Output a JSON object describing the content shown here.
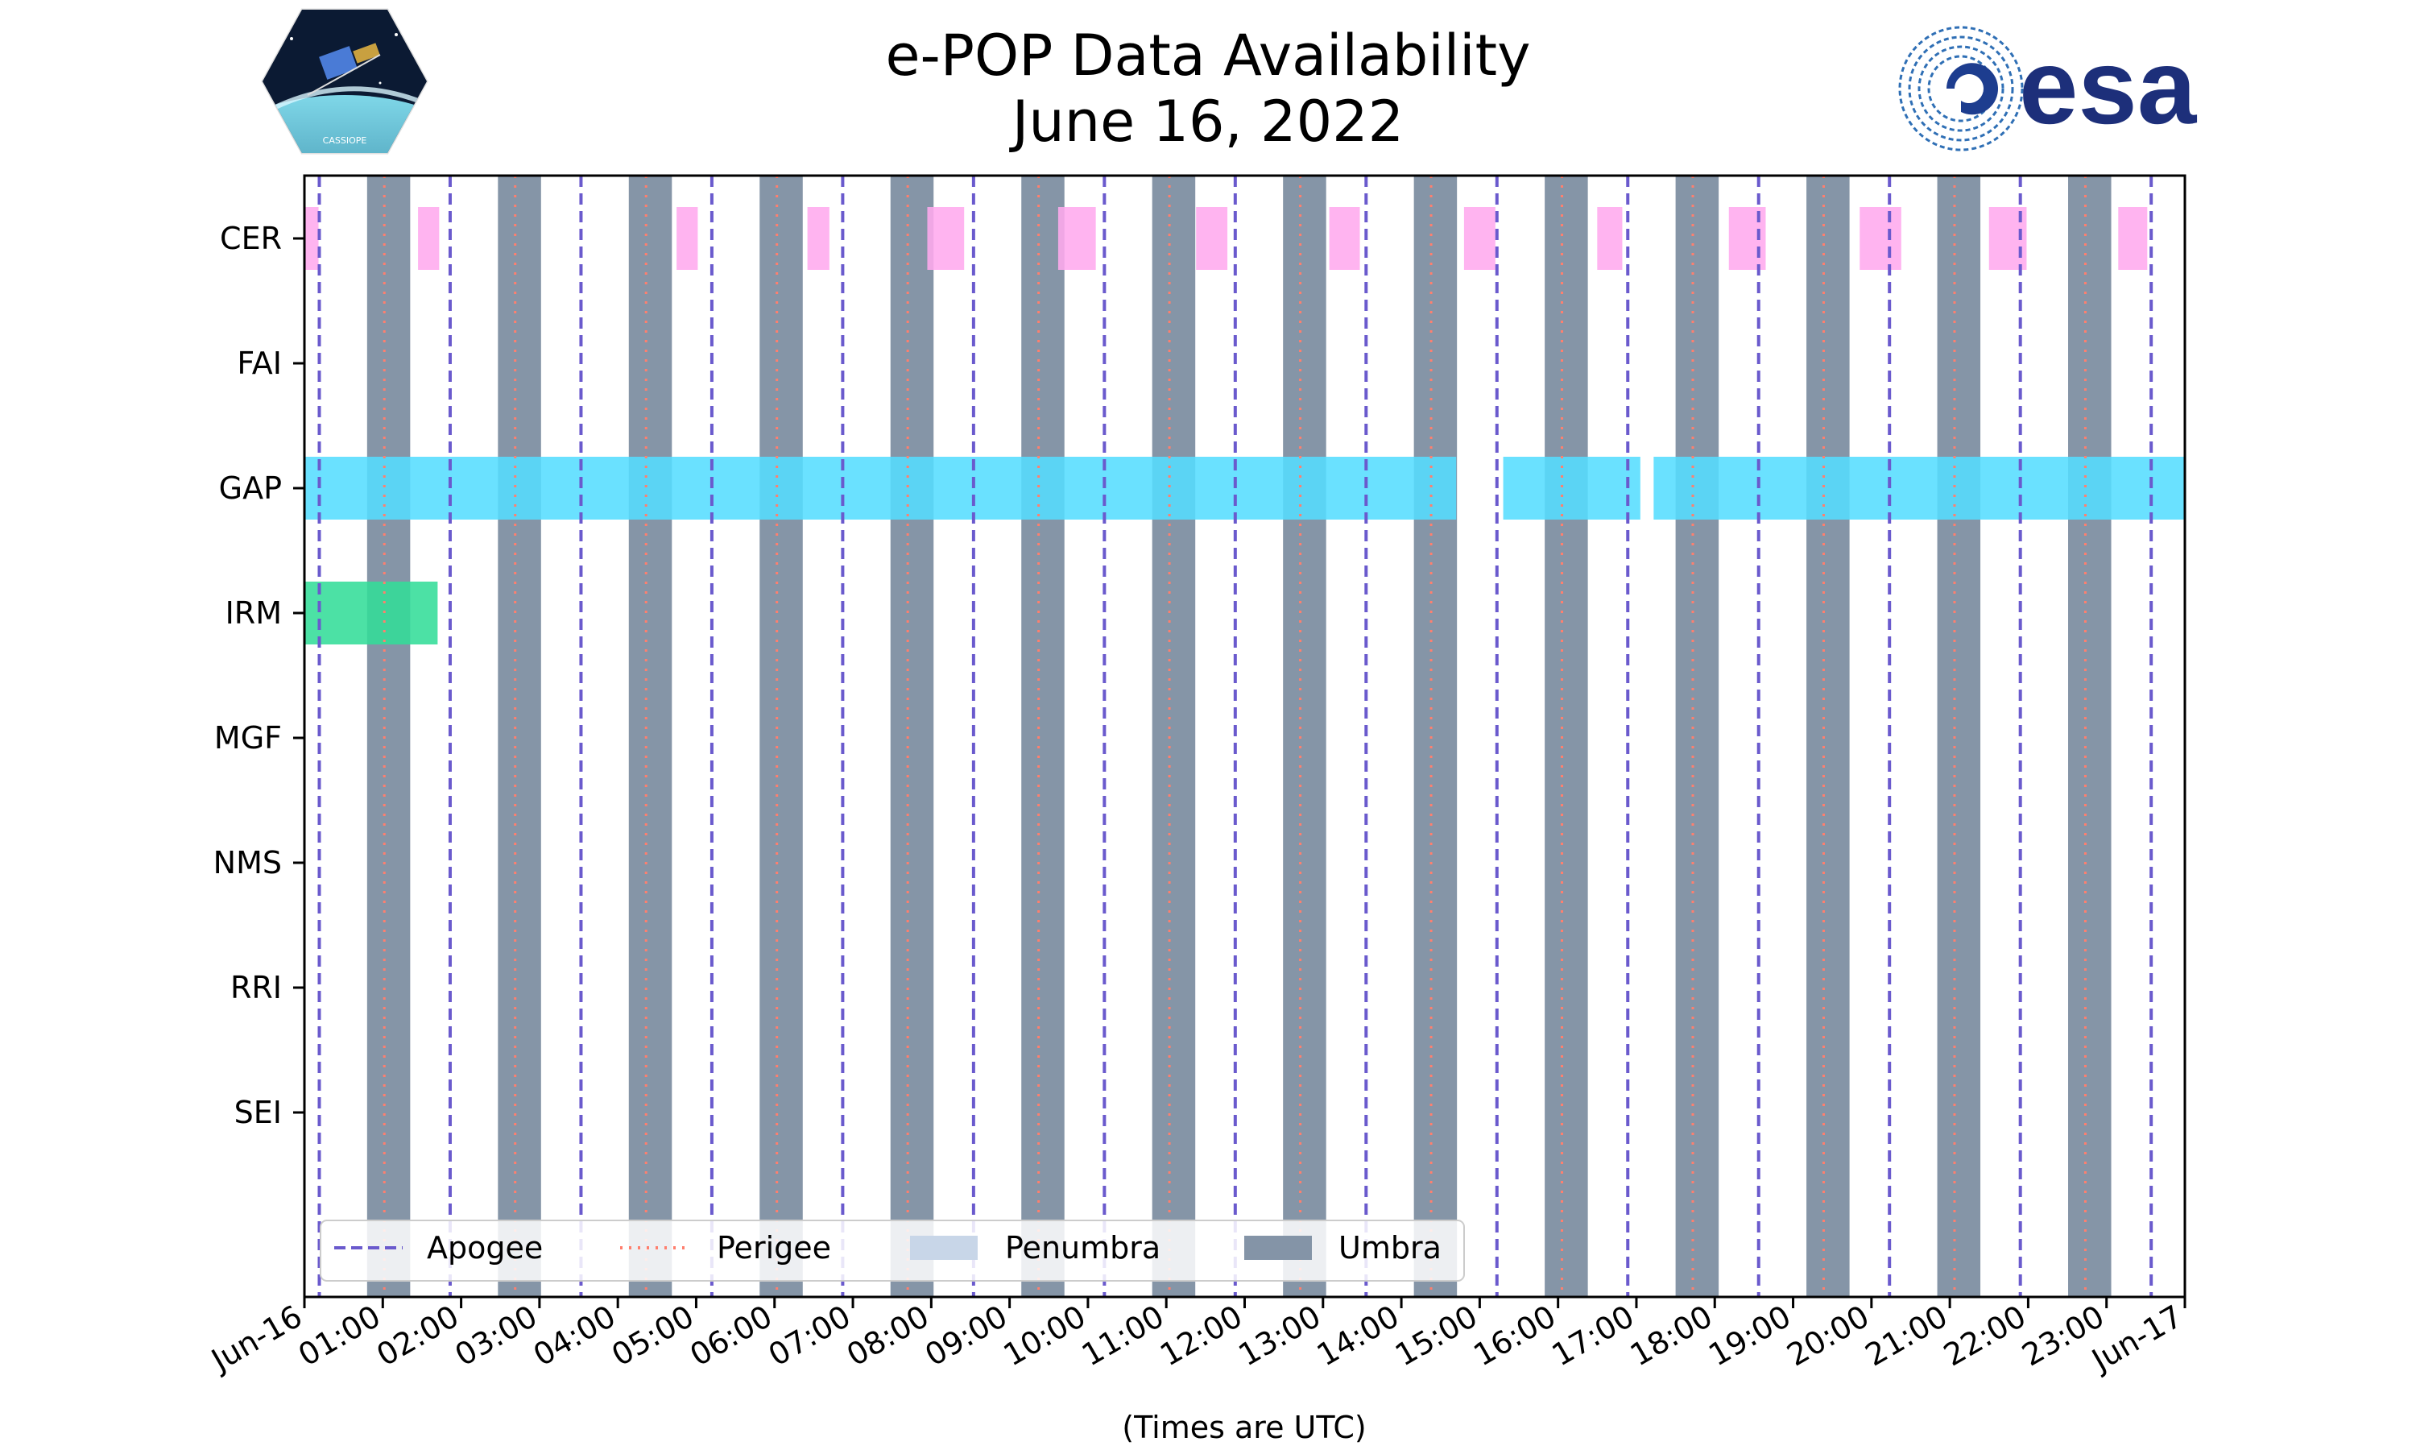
{
  "header": {
    "title_line1": "e-POP Data Availability",
    "title_line2": "June 16, 2022",
    "left_logo_caption": "CASSIOPE",
    "right_logo_text": "esa"
  },
  "chart_data": {
    "type": "timeline",
    "title": "e-POP Data Availability June 16, 2022",
    "xlabel": "(Times are UTC)",
    "ylabel": "",
    "x_range_hours": [
      0,
      24
    ],
    "x_ticks": [
      "Jun-16",
      "01:00",
      "02:00",
      "03:00",
      "04:00",
      "05:00",
      "06:00",
      "07:00",
      "08:00",
      "09:00",
      "10:00",
      "11:00",
      "12:00",
      "13:00",
      "14:00",
      "15:00",
      "16:00",
      "17:00",
      "18:00",
      "19:00",
      "20:00",
      "21:00",
      "22:00",
      "23:00",
      "Jun-17"
    ],
    "instruments": [
      "CER",
      "FAI",
      "GAP",
      "IRM",
      "MGF",
      "NMS",
      "RRI",
      "SEI"
    ],
    "apogee_hours": [
      0.19,
      1.86,
      3.53,
      5.2,
      6.87,
      8.54,
      10.21,
      11.88,
      13.55,
      15.22,
      16.89,
      18.56,
      20.23,
      21.9,
      23.57
    ],
    "perigee_hours": [
      1.02,
      2.69,
      4.36,
      6.03,
      7.7,
      9.37,
      11.04,
      12.71,
      14.38,
      16.05,
      17.72,
      19.39,
      21.06,
      22.73
    ],
    "umbra_intervals_hours": [
      [
        0.8,
        1.35
      ],
      [
        2.47,
        3.02
      ],
      [
        4.14,
        4.69
      ],
      [
        5.81,
        6.36
      ],
      [
        7.48,
        8.03
      ],
      [
        9.15,
        9.7
      ],
      [
        10.82,
        11.37
      ],
      [
        12.49,
        13.04
      ],
      [
        14.16,
        14.71
      ],
      [
        15.83,
        16.38
      ],
      [
        17.5,
        18.05
      ],
      [
        19.17,
        19.72
      ],
      [
        20.84,
        21.39
      ],
      [
        22.51,
        23.06
      ]
    ],
    "availability": [
      {
        "instrument": "CER",
        "color": "#ffaaee",
        "intervals_hours": [
          [
            0.0,
            0.18
          ],
          [
            1.45,
            1.72
          ],
          [
            4.75,
            5.02
          ],
          [
            6.42,
            6.7
          ],
          [
            7.95,
            8.42
          ],
          [
            9.62,
            10.1
          ],
          [
            11.38,
            11.78
          ],
          [
            13.08,
            13.47
          ],
          [
            14.8,
            15.2
          ],
          [
            16.5,
            16.82
          ],
          [
            18.18,
            18.65
          ],
          [
            19.85,
            20.38
          ],
          [
            21.5,
            21.98
          ],
          [
            23.15,
            23.52
          ]
        ]
      },
      {
        "instrument": "FAI",
        "color": "#cccccc",
        "intervals_hours": []
      },
      {
        "instrument": "GAP",
        "color": "#55ddff",
        "intervals_hours": [
          [
            0.0,
            14.7
          ],
          [
            15.3,
            17.05
          ],
          [
            17.22,
            24.0
          ]
        ]
      },
      {
        "instrument": "IRM",
        "color": "#33dd99",
        "intervals_hours": [
          [
            0.0,
            1.7
          ]
        ]
      },
      {
        "instrument": "MGF",
        "color": "#cccccc",
        "intervals_hours": []
      },
      {
        "instrument": "NMS",
        "color": "#cccccc",
        "intervals_hours": []
      },
      {
        "instrument": "RRI",
        "color": "#cccccc",
        "intervals_hours": []
      },
      {
        "instrument": "SEI",
        "color": "#cccccc",
        "intervals_hours": []
      }
    ],
    "legend": {
      "location": "lower-left",
      "items": [
        {
          "label": "Apogee",
          "style": "dashed",
          "color": "#6a5acd"
        },
        {
          "label": "Perigee",
          "style": "dotted",
          "color": "#ff7f6e"
        },
        {
          "label": "Penumbra",
          "style": "patch",
          "color": "#c8d6e8"
        },
        {
          "label": "Umbra",
          "style": "patch",
          "color": "#8494a7"
        }
      ]
    },
    "colors": {
      "apogee": "#6a5acd",
      "perigee": "#ff7f6e",
      "umbra": "#7b8ca0",
      "penumbra": "#c8d6e8"
    }
  }
}
